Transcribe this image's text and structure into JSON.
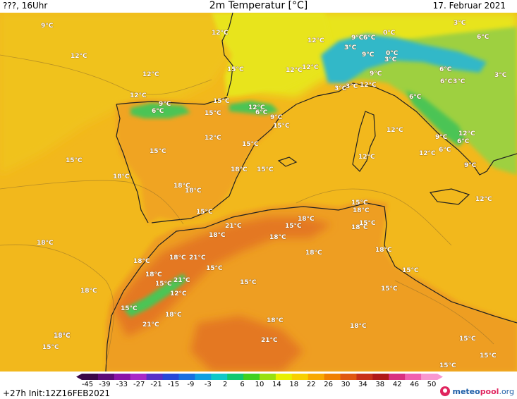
{
  "header": {
    "left": "???, 16Uhr",
    "title": "2m Temperatur [°C]",
    "date": "17. Februar 2021"
  },
  "footer": {
    "run": "+27h Init:12Z16FEB2021",
    "logo": {
      "meteo": "meteo",
      "pool": "pool",
      "org": ".org"
    }
  },
  "scale": {
    "ticks": [
      "-45",
      "-39",
      "-33",
      "-27",
      "-21",
      "-15",
      "-9",
      "-3",
      "2",
      "6",
      "10",
      "14",
      "18",
      "22",
      "26",
      "30",
      "34",
      "38",
      "42",
      "46",
      "50"
    ],
    "colors": [
      "#3a0848",
      "#5c0b78",
      "#8a14a8",
      "#a828c8",
      "#5830c8",
      "#2848d8",
      "#1870e0",
      "#10a0e0",
      "#10c8c8",
      "#10c870",
      "#40d020",
      "#98e010",
      "#e8f000",
      "#f8d000",
      "#f8a800",
      "#f08000",
      "#e05810",
      "#c83018",
      "#b01818",
      "#d83080",
      "#f060b0",
      "#f898d0"
    ]
  },
  "map_colors": {
    "sea": "#f2b81c",
    "sea_west": "#f0c21e",
    "sea_north": "#e8e41e",
    "iberia": "#f0a420",
    "africa": "#ee9e20",
    "atlas_hot": "#e47820",
    "cold_green": "#4cc454",
    "alps_blue": "#30b8c8",
    "italy_green": "#9ed040",
    "coast": "#202020"
  },
  "labels": [
    {
      "t": "9°C"
    },
    {
      "t": "12°C"
    },
    {
      "t": "12°C"
    },
    {
      "t": "12°C"
    },
    {
      "t": "12°C"
    },
    {
      "t": "15°C"
    },
    {
      "t": "12°C"
    },
    {
      "t": "12°C"
    },
    {
      "t": "9°C"
    },
    {
      "t": "6°C"
    },
    {
      "t": "15°C"
    },
    {
      "t": "15°C"
    },
    {
      "t": "12°C"
    },
    {
      "t": "6°C"
    },
    {
      "t": "9°C"
    },
    {
      "t": "15°C"
    },
    {
      "t": "12°C"
    },
    {
      "t": "15°C"
    },
    {
      "t": "15°C"
    },
    {
      "t": "15°C"
    },
    {
      "t": "18°C"
    },
    {
      "t": "15°C"
    },
    {
      "t": "18°C"
    },
    {
      "t": "18°C"
    },
    {
      "t": "18°C"
    },
    {
      "t": "15°C"
    },
    {
      "t": "18°C"
    },
    {
      "t": "21°C"
    },
    {
      "t": "15°C"
    },
    {
      "t": "18°C"
    },
    {
      "t": "18°C"
    },
    {
      "t": "18°C"
    },
    {
      "t": "21°C"
    },
    {
      "t": "18°C"
    },
    {
      "t": "18°C"
    },
    {
      "t": "15°C"
    },
    {
      "t": "18°C"
    },
    {
      "t": "21°C"
    },
    {
      "t": "15°C"
    },
    {
      "t": "12°C"
    },
    {
      "t": "15°C"
    },
    {
      "t": "18°C"
    },
    {
      "t": "15°C"
    },
    {
      "t": "18°C"
    },
    {
      "t": "18°C"
    },
    {
      "t": "21°C"
    },
    {
      "t": "18°C"
    },
    {
      "t": "18°C"
    },
    {
      "t": "15°C"
    },
    {
      "t": "18°C"
    },
    {
      "t": "21°C"
    },
    {
      "t": "18°C"
    },
    {
      "t": "15°C"
    },
    {
      "t": "15°C"
    },
    {
      "t": "15°C"
    },
    {
      "t": "15°C"
    },
    {
      "t": "18°C"
    },
    {
      "t": "18°C"
    },
    {
      "t": "15°C"
    },
    {
      "t": "15°C"
    },
    {
      "t": "18°C"
    },
    {
      "t": "15°C"
    },
    {
      "t": "3°C"
    },
    {
      "t": "6°C"
    },
    {
      "t": "9°C"
    },
    {
      "t": "6°C"
    },
    {
      "t": "0°C"
    },
    {
      "t": "3°C"
    },
    {
      "t": "9°C"
    },
    {
      "t": "0°C"
    },
    {
      "t": "3°C"
    },
    {
      "t": "9°C"
    },
    {
      "t": "6°C"
    },
    {
      "t": "3°C"
    },
    {
      "t": "12°C"
    },
    {
      "t": "6°C"
    },
    {
      "t": "3°C"
    },
    {
      "t": "3°C"
    },
    {
      "t": "6°C"
    },
    {
      "t": "12°C"
    },
    {
      "t": "3°C"
    },
    {
      "t": "6°C"
    },
    {
      "t": "9°C"
    },
    {
      "t": "9°C"
    },
    {
      "t": "12°C"
    },
    {
      "t": "6°C"
    },
    {
      "t": "12°C"
    },
    {
      "t": "12°C"
    },
    {
      "t": "9°C"
    },
    {
      "t": "12°C"
    },
    {
      "t": "12°C"
    }
  ]
}
